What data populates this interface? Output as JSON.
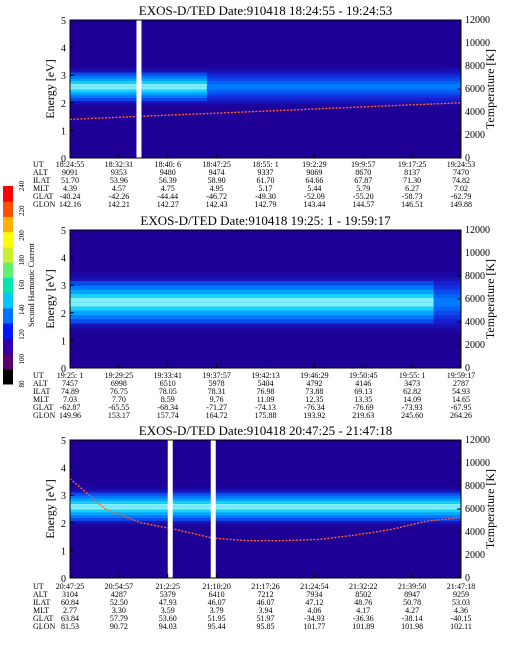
{
  "colorbar": {
    "label": "Second Harmonic Current",
    "ticks": [
      "80",
      "100",
      "120",
      "140",
      "160",
      "180",
      "200",
      "220",
      "240"
    ],
    "range": [
      80,
      240
    ]
  },
  "chart_data": [
    {
      "type": "heatmap",
      "title": "EXOS-D/TED  Date:910418  18:24:55 - 19:24:53",
      "ylabel": "Energy [eV]",
      "y2label": "Temperature [K]",
      "ylim": [
        0,
        5
      ],
      "yticks": [
        "0",
        "1",
        "2",
        "3",
        "4",
        "5"
      ],
      "y2lim": [
        0,
        12000
      ],
      "y2ticks": [
        "0",
        "2000",
        "4000",
        "6000",
        "8000",
        "10000",
        "12000"
      ],
      "band": {
        "center_ev": 2.6,
        "halfwidth_ev": 0.4,
        "peak_end_fraction": 0.35
      },
      "curve_y_ev": [
        1.4,
        1.55,
        1.7,
        1.85,
        2.0
      ],
      "gaps": [
        0.17
      ],
      "ephemeris": {
        "labels": [
          "UT",
          "ALT",
          "ILAT",
          "MLT",
          "GLAT",
          "GLON"
        ],
        "columns": [
          [
            "18:24:55",
            "9091",
            "51.70",
            "4.39",
            "-40.24",
            "142.16"
          ],
          [
            "18:32:31",
            "9353",
            "53.96",
            "4.57",
            "-42.26",
            "142.21"
          ],
          [
            "18:40: 6",
            "9480",
            "56.39",
            "4.75",
            "-44.44",
            "142.27"
          ],
          [
            "18:47:25",
            "9474",
            "58.90",
            "4.95",
            "-46.72",
            "142.43"
          ],
          [
            "18:55: 1",
            "9337",
            "61.70",
            "5.17",
            "-49.30",
            "142.79"
          ],
          [
            "19:2:29",
            "9069",
            "64.66",
            "5.44",
            "-52.09",
            "143.44"
          ],
          [
            "19:9:57",
            "8670",
            "67.87",
            "5.79",
            "-55.20",
            "144.57"
          ],
          [
            "19:17:25",
            "8137",
            "71.30",
            "6.27",
            "-58.73",
            "146.51"
          ],
          [
            "19:24:53",
            "7470",
            "74.82",
            "7.02",
            "-62.79",
            "149.88"
          ]
        ]
      }
    },
    {
      "type": "heatmap",
      "title": "EXOS-D/TED  Date:910418  19:25: 1 - 19:59:17",
      "ylabel": "Energy [eV]",
      "y2label": "Temperature [K]",
      "ylim": [
        0,
        5
      ],
      "yticks": [
        "0",
        "1",
        "2",
        "3",
        "4",
        "5"
      ],
      "y2lim": [
        0,
        12000
      ],
      "y2ticks": [
        "0",
        "2000",
        "4000",
        "6000",
        "8000",
        "10000",
        "12000"
      ],
      "band": {
        "center_ev": 2.4,
        "halfwidth_ev": 0.6,
        "peak_end_fraction": 0.93
      },
      "curve_y_ev": [],
      "gaps": [],
      "ephemeris": {
        "labels": [
          "UT",
          "ALT",
          "ILAT",
          "MLT",
          "GLAT",
          "GLON"
        ],
        "columns": [
          [
            "19:25: 1",
            "7457",
            "74.89",
            "7.03",
            "-62.87",
            "149.96"
          ],
          [
            "19:29:25",
            "6998",
            "76.75",
            "7.70",
            "-65.55",
            "153.17"
          ],
          [
            "19:33:41",
            "6510",
            "78.05",
            "8.59",
            "-68.34",
            "157.74"
          ],
          [
            "19:37:57",
            "5978",
            "78.31",
            "9.76",
            "-71.27",
            "164.72"
          ],
          [
            "19:42:13",
            "5404",
            "76.98",
            "11.09",
            "-74.13",
            "175.88"
          ],
          [
            "19:46:29",
            "4792",
            "73.88",
            "12.35",
            "-76.34",
            "193.92"
          ],
          [
            "19:50:45",
            "4146",
            "69.13",
            "13.35",
            "-76.69",
            "219.63"
          ],
          [
            "19:55: 1",
            "3473",
            "62.82",
            "14.09",
            "-73.93",
            "245.60"
          ],
          [
            "19:59:17",
            "2787",
            "54.93",
            "14.65",
            "-67.95",
            "264.26"
          ]
        ]
      }
    },
    {
      "type": "heatmap",
      "title": "EXOS-D/TED  Date:910418  20:47:25 - 21:47:18",
      "ylabel": "Energy [eV]",
      "y2label": "Temperature [K]",
      "ylim": [
        0,
        5
      ],
      "yticks": [
        "0",
        "1",
        "2",
        "3",
        "4",
        "5"
      ],
      "y2lim": [
        0,
        12000
      ],
      "y2ticks": [
        "0",
        "2000",
        "4000",
        "6000",
        "8000",
        "10000",
        "12000"
      ],
      "band": {
        "center_ev": 2.6,
        "halfwidth_ev": 0.4,
        "peak_end_fraction": 1.0
      },
      "curve_y_ev": [
        3.6,
        2.5,
        2.0,
        1.75,
        1.45,
        1.35,
        1.35,
        1.4,
        1.55,
        1.75,
        2.05,
        2.2
      ],
      "gaps": [
        0.25,
        0.36
      ],
      "ephemeris": {
        "labels": [
          "UT",
          "ALT",
          "ILAT",
          "MLT",
          "GLAT",
          "GLON"
        ],
        "columns": [
          [
            "20:47:25",
            "3104",
            "60.84",
            "2.77",
            "63.84",
            "81.53"
          ],
          [
            "20:54:57",
            "4287",
            "52.50",
            "3.30",
            "57.79",
            "90.72"
          ],
          [
            "21:2:25",
            "5379",
            "47.93",
            "3.59",
            "53.60",
            "94.03"
          ],
          [
            "21:10:20",
            "6410",
            "46.07",
            "3.79",
            "51.95",
            "95.44"
          ],
          [
            "21:17:26",
            "7212",
            "46.07",
            "3.94",
            "51.97",
            "95.85"
          ],
          [
            "21:24:54",
            "7934",
            "47.12",
            "4.06",
            "-34.93",
            "101.77"
          ],
          [
            "21:32:22",
            "8502",
            "48.76",
            "4.17",
            "-36.36",
            "101.89"
          ],
          [
            "21:39:50",
            "8947",
            "50.78",
            "4.27",
            "-38.14",
            "101.98"
          ],
          [
            "21:47:18",
            "9259",
            "53.03",
            "4.36",
            "-40.15",
            "102.11"
          ]
        ]
      }
    }
  ]
}
